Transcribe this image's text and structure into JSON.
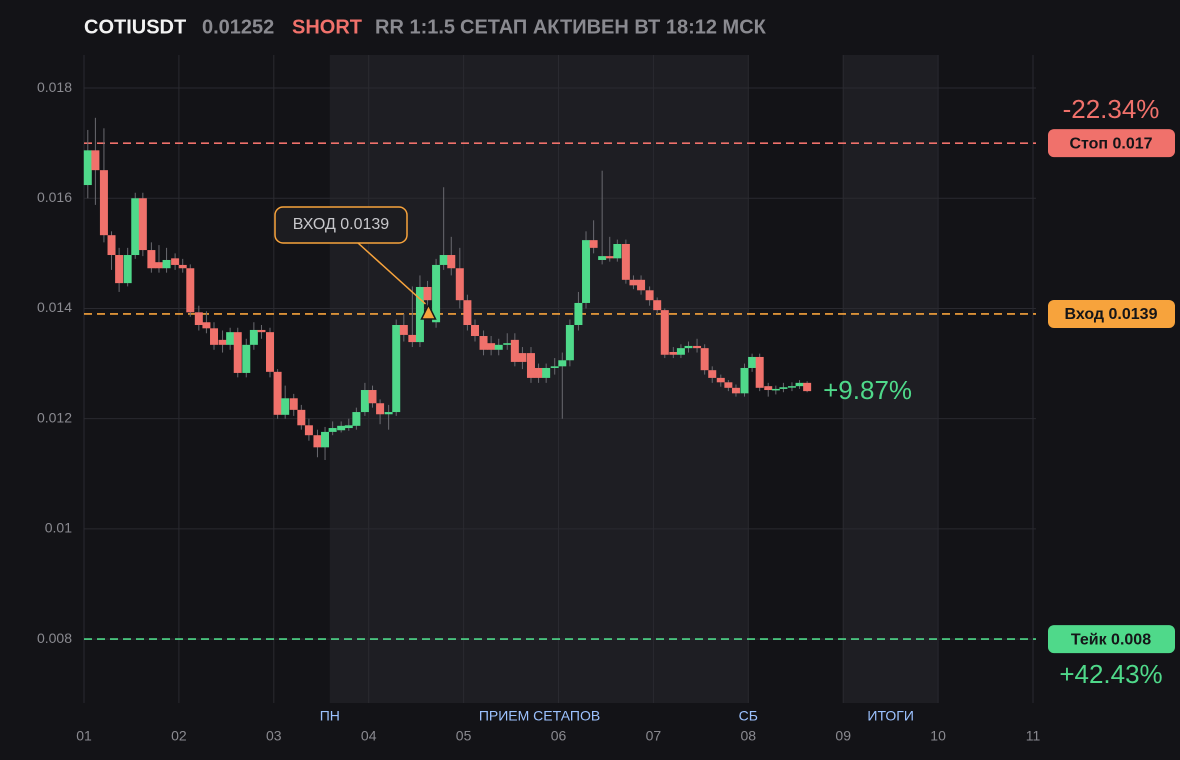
{
  "header": {
    "symbol": "COTIUSDT",
    "price": "0.01252",
    "side": "SHORT",
    "rr": "RR 1:1.5",
    "status": "СЕТАП АКТИВЕН ВТ 18:12 МСК"
  },
  "chart_data": {
    "type": "candlestick",
    "up_color": "#4fd98a",
    "down_color": "#f0716b",
    "grid": true,
    "xlim": [
      1,
      11
    ],
    "ylim": [
      0.00684,
      0.0186
    ],
    "xticks": [
      {
        "value": 1,
        "label": "01"
      },
      {
        "value": 2,
        "label": "02"
      },
      {
        "value": 3,
        "label": "03"
      },
      {
        "value": 4,
        "label": "04"
      },
      {
        "value": 5,
        "label": "05"
      },
      {
        "value": 6,
        "label": "06"
      },
      {
        "value": 7,
        "label": "07"
      },
      {
        "value": 8,
        "label": "08"
      },
      {
        "value": 9,
        "label": "09"
      },
      {
        "value": 10,
        "label": "10"
      },
      {
        "value": 11,
        "label": "11"
      }
    ],
    "yticks": [
      0.008,
      0.01,
      0.012,
      0.014,
      0.016,
      0.018
    ],
    "sessions": [
      {
        "start": 3.59,
        "end": 8.0
      },
      {
        "start": 9.0,
        "end": 10.0
      }
    ],
    "session_labels": [
      {
        "x": 3.59,
        "label": "ПН"
      },
      {
        "x": 5.8,
        "label": "ПРИЕМ СЕТАПОВ"
      },
      {
        "x": 8.0,
        "label": "СБ"
      },
      {
        "x": 9.5,
        "label": "ИТОГИ"
      }
    ],
    "x": [
      1.04,
      1.12,
      1.21,
      1.29,
      1.37,
      1.46,
      1.54,
      1.62,
      1.71,
      1.79,
      1.87,
      1.96,
      2.04,
      2.12,
      2.21,
      2.29,
      2.37,
      2.46,
      2.54,
      2.62,
      2.71,
      2.79,
      2.87,
      2.96,
      3.04,
      3.12,
      3.21,
      3.29,
      3.37,
      3.46,
      3.54,
      3.62,
      3.71,
      3.79,
      3.87,
      3.96,
      4.04,
      4.12,
      4.21,
      4.29,
      4.37,
      4.46,
      4.54,
      4.62,
      4.71,
      4.79,
      4.87,
      4.96,
      5.04,
      5.12,
      5.21,
      5.29,
      5.37,
      5.46,
      5.54,
      5.62,
      5.71,
      5.79,
      5.87,
      5.96,
      6.04,
      6.12,
      6.21,
      6.29,
      6.37,
      6.46,
      6.54,
      6.62,
      6.71,
      6.79,
      6.87,
      6.96,
      7.04,
      7.12,
      7.21,
      7.29,
      7.37,
      7.46,
      7.54,
      7.62,
      7.71,
      7.79,
      7.87,
      7.96,
      8.04,
      8.12,
      8.21,
      8.29,
      8.37,
      8.46,
      8.54,
      8.62
    ],
    "open": [
      0.01624,
      0.01687,
      0.01651,
      0.01533,
      0.01497,
      0.01446,
      0.01497,
      0.016,
      0.01506,
      0.01484,
      0.01473,
      0.01491,
      0.01479,
      0.01473,
      0.01393,
      0.01375,
      0.01364,
      0.01343,
      0.01334,
      0.01357,
      0.01283,
      0.01334,
      0.01361,
      0.01357,
      0.01285,
      0.01207,
      0.01237,
      0.01216,
      0.01188,
      0.0117,
      0.01148,
      0.01176,
      0.01179,
      0.01183,
      0.01187,
      0.01212,
      0.01252,
      0.01228,
      0.01208,
      0.01212,
      0.0137,
      0.01352,
      0.01339,
      0.01439,
      0.01375,
      0.01479,
      0.01497,
      0.01473,
      0.01415,
      0.0137,
      0.0135,
      0.01337,
      0.01325,
      0.01334,
      0.01343,
      0.01319,
      0.01319,
      0.01292,
      0.01274,
      0.01292,
      0.01295,
      0.01306,
      0.0137,
      0.0141,
      0.01524,
      0.01488,
      0.01495,
      0.01491,
      0.01517,
      0.01452,
      0.01452,
      0.01433,
      0.01415,
      0.01397,
      0.01321,
      0.01316,
      0.01328,
      0.01332,
      0.01328,
      0.01288,
      0.01274,
      0.01266,
      0.01256,
      0.01246,
      0.01292,
      0.01312,
      0.01259,
      0.01252,
      0.01254,
      0.01257,
      0.01259,
      0.01265
    ],
    "high": [
      0.01724,
      0.01746,
      0.01727,
      0.0154,
      0.0151,
      0.0151,
      0.0161,
      0.0161,
      0.0152,
      0.01515,
      0.0151,
      0.015,
      0.0149,
      0.0148,
      0.01405,
      0.01395,
      0.01375,
      0.0136,
      0.01365,
      0.01365,
      0.01345,
      0.01375,
      0.0137,
      0.01365,
      0.0129,
      0.0126,
      0.01245,
      0.01225,
      0.012,
      0.0118,
      0.01185,
      0.01195,
      0.01195,
      0.012,
      0.0122,
      0.01265,
      0.0126,
      0.01235,
      0.01225,
      0.0138,
      0.0139,
      0.0144,
      0.0146,
      0.0145,
      0.0149,
      0.0162,
      0.0153,
      0.0151,
      0.01425,
      0.0138,
      0.0136,
      0.0135,
      0.01345,
      0.01355,
      0.01355,
      0.0133,
      0.0133,
      0.013,
      0.013,
      0.0131,
      0.0132,
      0.0138,
      0.0143,
      0.0154,
      0.0156,
      0.0165,
      0.0153,
      0.01525,
      0.01525,
      0.0146,
      0.0146,
      0.0144,
      0.0142,
      0.014,
      0.0133,
      0.01335,
      0.0134,
      0.01345,
      0.01335,
      0.01295,
      0.0128,
      0.0127,
      0.01262,
      0.013,
      0.01318,
      0.01318,
      0.01265,
      0.0126,
      0.01265,
      0.01266,
      0.0127,
      0.01268
    ],
    "low": [
      0.016,
      0.01588,
      0.0152,
      0.0147,
      0.0143,
      0.0144,
      0.0149,
      0.01495,
      0.01465,
      0.01465,
      0.01465,
      0.0147,
      0.01465,
      0.01385,
      0.0136,
      0.01355,
      0.01325,
      0.0132,
      0.01325,
      0.01275,
      0.01275,
      0.01325,
      0.01345,
      0.01275,
      0.012,
      0.012,
      0.01205,
      0.0118,
      0.0116,
      0.0113,
      0.01125,
      0.0117,
      0.01175,
      0.01178,
      0.0118,
      0.01205,
      0.0122,
      0.0119,
      0.0118,
      0.01205,
      0.0134,
      0.0133,
      0.0133,
      0.014,
      0.01365,
      0.0147,
      0.0146,
      0.014,
      0.0136,
      0.0134,
      0.01315,
      0.01315,
      0.01315,
      0.01325,
      0.01295,
      0.0129,
      0.01265,
      0.01265,
      0.01265,
      0.0128,
      0.012,
      0.01295,
      0.0136,
      0.014,
      0.015,
      0.0148,
      0.01485,
      0.01485,
      0.01445,
      0.01435,
      0.01425,
      0.01405,
      0.0139,
      0.0131,
      0.0131,
      0.0131,
      0.0132,
      0.0132,
      0.0128,
      0.01265,
      0.01258,
      0.0125,
      0.0124,
      0.0124,
      0.01285,
      0.0125,
      0.0124,
      0.01244,
      0.01248,
      0.0125,
      0.01254,
      0.01248
    ],
    "close": [
      0.01687,
      0.01651,
      0.01533,
      0.01497,
      0.01446,
      0.01497,
      0.016,
      0.01506,
      0.01473,
      0.01473,
      0.01488,
      0.01479,
      0.01473,
      0.01393,
      0.0137,
      0.01364,
      0.01334,
      0.01334,
      0.01357,
      0.01283,
      0.01334,
      0.01361,
      0.01357,
      0.01285,
      0.01207,
      0.01237,
      0.01216,
      0.01188,
      0.0117,
      0.01148,
      0.01176,
      0.01183,
      0.01187,
      0.01188,
      0.01212,
      0.01252,
      0.01228,
      0.01208,
      0.01212,
      0.0137,
      0.01352,
      0.01339,
      0.01439,
      0.01415,
      0.01479,
      0.01497,
      0.01473,
      0.01415,
      0.0137,
      0.0135,
      0.01325,
      0.01325,
      0.01334,
      0.01337,
      0.01303,
      0.01303,
      0.01274,
      0.01274,
      0.01292,
      0.01295,
      0.01306,
      0.0137,
      0.0141,
      0.01524,
      0.0151,
      0.01495,
      0.01491,
      0.01517,
      0.01452,
      0.01442,
      0.01433,
      0.01415,
      0.01397,
      0.01316,
      0.01316,
      0.01328,
      0.01332,
      0.01328,
      0.01288,
      0.01274,
      0.01266,
      0.01256,
      0.01246,
      0.01292,
      0.01312,
      0.01256,
      0.01252,
      0.01254,
      0.01257,
      0.01259,
      0.01265,
      0.0125
    ],
    "levels": [
      {
        "label": "Стоп 0.017",
        "value": 0.017,
        "color": "#f0716b",
        "pct": "-22.34%",
        "pct_side": "above"
      },
      {
        "label": "Вход 0.0139",
        "value": 0.0139,
        "color": "#f7a33c"
      },
      {
        "label": "Тейк 0.008",
        "value": 0.008,
        "color": "#4fd98a",
        "pct": "+42.43%",
        "pct_side": "below"
      }
    ],
    "current_pct": "+9.87%",
    "entry_marker": {
      "label": "ВХОД 0.0139",
      "x": 4.63,
      "y": 0.0139
    }
  }
}
